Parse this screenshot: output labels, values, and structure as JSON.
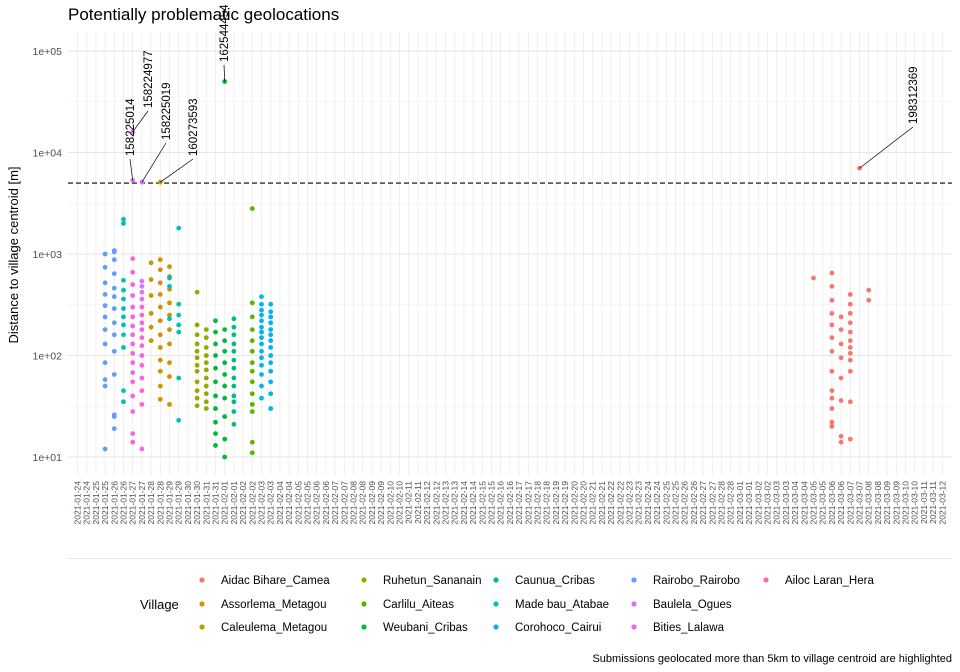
{
  "chart_data": {
    "type": "scatter",
    "title": "Potentially problematic geolocations",
    "ylabel": "Distance to village centroid [m]",
    "xlabel": "",
    "yscale": "log10",
    "ylim": [
      6,
      160000
    ],
    "y_ticks": [
      {
        "value": 10,
        "label": "1e+01"
      },
      {
        "value": 100,
        "label": "1e+02"
      },
      {
        "value": 1000,
        "label": "1e+03"
      },
      {
        "value": 10000,
        "label": "1e+04"
      },
      {
        "value": 100000,
        "label": "1e+05"
      }
    ],
    "threshold": 5000,
    "grid": true,
    "legend_position": "bottom",
    "legend_title": "Village",
    "caption": "Submissions geolocated more than 5km to village centroid are highlighted",
    "x_start_label": "2021-01-24",
    "x_count": 95,
    "x_labels": [
      "2021-01-24",
      "2021-01-24",
      "2021-01-25",
      "2021-01-25",
      "2021-01-26",
      "2021-01-26",
      "2021-01-27",
      "2021-01-27",
      "2021-01-28",
      "2021-01-28",
      "2021-01-29",
      "2021-01-29",
      "2021-01-30",
      "2021-01-30",
      "2021-01-31",
      "2021-01-31",
      "2021-02-01",
      "2021-02-01",
      "2021-02-02",
      "2021-02-02",
      "2021-02-03",
      "2021-02-03",
      "2021-02-04",
      "2021-02-04",
      "2021-02-05",
      "2021-02-05",
      "2021-02-06",
      "2021-02-06",
      "2021-02-07",
      "2021-02-07",
      "2021-02-08",
      "2021-02-08",
      "2021-02-09",
      "2021-02-09",
      "2021-02-10",
      "2021-02-10",
      "2021-02-11",
      "2021-02-11",
      "2021-02-12",
      "2021-02-12",
      "2021-02-13",
      "2021-02-13",
      "2021-02-14",
      "2021-02-14",
      "2021-02-15",
      "2021-02-15",
      "2021-02-16",
      "2021-02-16",
      "2021-02-17",
      "2021-02-17",
      "2021-02-18",
      "2021-02-18",
      "2021-02-19",
      "2021-02-19",
      "2021-02-20",
      "2021-02-20",
      "2021-02-21",
      "2021-02-21",
      "2021-02-22",
      "2021-02-22",
      "2021-02-23",
      "2021-02-23",
      "2021-02-24",
      "2021-02-24",
      "2021-02-25",
      "2021-02-25",
      "2021-02-26",
      "2021-02-26",
      "2021-02-27",
      "2021-02-27",
      "2021-02-28",
      "2021-02-28",
      "2021-03-01",
      "2021-03-01",
      "2021-03-02",
      "2021-03-02",
      "2021-03-03",
      "2021-03-03",
      "2021-03-04",
      "2021-03-04",
      "2021-03-05",
      "2021-03-05",
      "2021-03-06",
      "2021-03-06",
      "2021-03-07",
      "2021-03-07",
      "2021-03-08",
      "2021-03-08",
      "2021-03-09",
      "2021-03-09",
      "2021-03-10",
      "2021-03-10",
      "2021-03-11",
      "2021-03-11",
      "2021-03-12"
    ],
    "series": [
      {
        "name": "Aidac Bihare_Camea",
        "color": "#F8766D",
        "points": [
          [
            80,
            580
          ],
          [
            82,
            650
          ],
          [
            82,
            480
          ],
          [
            82,
            350
          ],
          [
            82,
            260
          ],
          [
            82,
            200
          ],
          [
            82,
            150
          ],
          [
            82,
            110
          ],
          [
            82,
            70
          ],
          [
            82,
            45
          ],
          [
            82,
            38
          ],
          [
            82,
            30
          ],
          [
            82,
            22
          ],
          [
            82,
            20
          ],
          [
            83,
            240
          ],
          [
            83,
            180
          ],
          [
            83,
            130
          ],
          [
            83,
            95
          ],
          [
            83,
            60
          ],
          [
            83,
            36
          ],
          [
            83,
            16
          ],
          [
            83,
            14
          ],
          [
            84,
            400
          ],
          [
            84,
            320
          ],
          [
            84,
            260
          ],
          [
            84,
            210
          ],
          [
            84,
            170
          ],
          [
            84,
            140
          ],
          [
            84,
            120
          ],
          [
            84,
            105
          ],
          [
            84,
            90
          ],
          [
            84,
            70
          ],
          [
            84,
            35
          ],
          [
            84,
            15
          ],
          [
            85,
            7000
          ],
          [
            86,
            440
          ],
          [
            86,
            350
          ]
        ]
      },
      {
        "name": "Assorlema_Metagou",
        "color": "#D39200",
        "points": [
          [
            9,
            5100
          ],
          [
            9,
            880
          ],
          [
            9,
            700
          ],
          [
            9,
            520
          ],
          [
            9,
            400
          ],
          [
            9,
            300
          ],
          [
            9,
            220
          ],
          [
            9,
            160
          ],
          [
            9,
            120
          ],
          [
            9,
            90
          ],
          [
            9,
            70
          ],
          [
            9,
            50
          ],
          [
            9,
            37
          ],
          [
            10,
            750
          ],
          [
            10,
            600
          ],
          [
            10,
            450
          ],
          [
            10,
            330
          ],
          [
            10,
            250
          ],
          [
            10,
            180
          ],
          [
            10,
            130
          ],
          [
            10,
            85
          ],
          [
            10,
            62
          ],
          [
            10,
            33
          ]
        ]
      },
      {
        "name": "Caleulema_Metagou",
        "color": "#B79F00",
        "points": [
          [
            8,
            820
          ],
          [
            8,
            560
          ],
          [
            8,
            390
          ],
          [
            8,
            260
          ],
          [
            8,
            190
          ],
          [
            8,
            140
          ]
        ]
      },
      {
        "name": "Ruhetun_Sananain",
        "color": "#93AA00",
        "points": [
          [
            13,
            420
          ],
          [
            13,
            200
          ],
          [
            13,
            160
          ],
          [
            13,
            130
          ],
          [
            13,
            110
          ],
          [
            13,
            95
          ],
          [
            13,
            80
          ],
          [
            13,
            70
          ],
          [
            13,
            55
          ],
          [
            13,
            45
          ],
          [
            13,
            38
          ],
          [
            13,
            32
          ],
          [
            14,
            180
          ],
          [
            14,
            150
          ],
          [
            14,
            120
          ],
          [
            14,
            100
          ],
          [
            14,
            85
          ],
          [
            14,
            72
          ],
          [
            14,
            60
          ],
          [
            14,
            50
          ],
          [
            14,
            42
          ],
          [
            14,
            35
          ],
          [
            14,
            30
          ]
        ]
      },
      {
        "name": "Carlilu_Aiteas",
        "color": "#5EB300",
        "points": [
          [
            19,
            2800
          ],
          [
            19,
            330
          ],
          [
            19,
            240
          ],
          [
            19,
            180
          ],
          [
            19,
            140
          ],
          [
            19,
            110
          ],
          [
            19,
            85
          ],
          [
            19,
            70
          ],
          [
            19,
            55
          ],
          [
            19,
            42
          ],
          [
            19,
            33
          ],
          [
            19,
            28
          ],
          [
            19,
            14
          ],
          [
            19,
            11
          ]
        ]
      },
      {
        "name": "Weubani_Cribas",
        "color": "#00BA38",
        "points": [
          [
            15,
            220
          ],
          [
            15,
            170
          ],
          [
            15,
            130
          ],
          [
            15,
            100
          ],
          [
            15,
            75
          ],
          [
            15,
            55
          ],
          [
            15,
            40
          ],
          [
            15,
            30
          ],
          [
            15,
            22
          ],
          [
            15,
            17
          ],
          [
            15,
            13
          ],
          [
            16,
            50000
          ],
          [
            16,
            180
          ],
          [
            16,
            140
          ],
          [
            16,
            110
          ],
          [
            16,
            85
          ],
          [
            16,
            65
          ],
          [
            16,
            50
          ],
          [
            16,
            38
          ],
          [
            16,
            25
          ],
          [
            16,
            15
          ],
          [
            16,
            10
          ]
        ]
      },
      {
        "name": "Caunua_Cribas",
        "color": "#00BF74",
        "points": [
          [
            17,
            230
          ],
          [
            17,
            190
          ],
          [
            17,
            160
          ],
          [
            17,
            130
          ],
          [
            17,
            110
          ],
          [
            17,
            90
          ],
          [
            17,
            75
          ],
          [
            17,
            60
          ],
          [
            17,
            50
          ],
          [
            17,
            40
          ],
          [
            17,
            35
          ],
          [
            17,
            28
          ],
          [
            17,
            21
          ]
        ]
      },
      {
        "name": "Made bau_Atabae",
        "color": "#00C0B8",
        "points": [
          [
            5,
            2200
          ],
          [
            5,
            2000
          ],
          [
            5,
            550
          ],
          [
            5,
            440
          ],
          [
            5,
            360
          ],
          [
            5,
            290
          ],
          [
            5,
            240
          ],
          [
            5,
            200
          ],
          [
            5,
            160
          ],
          [
            5,
            120
          ],
          [
            5,
            45
          ],
          [
            5,
            35
          ],
          [
            10,
            580
          ],
          [
            10,
            480
          ],
          [
            10,
            230
          ],
          [
            11,
            1800
          ],
          [
            11,
            320
          ],
          [
            11,
            250
          ],
          [
            11,
            200
          ],
          [
            11,
            170
          ],
          [
            11,
            60
          ],
          [
            11,
            23
          ]
        ]
      },
      {
        "name": "Corohoco_Cairui",
        "color": "#00B4F0",
        "points": [
          [
            20,
            380
          ],
          [
            20,
            320
          ],
          [
            20,
            280
          ],
          [
            20,
            250
          ],
          [
            20,
            220
          ],
          [
            20,
            190
          ],
          [
            20,
            170
          ],
          [
            20,
            150
          ],
          [
            20,
            130
          ],
          [
            20,
            110
          ],
          [
            20,
            95
          ],
          [
            20,
            80
          ],
          [
            20,
            65
          ],
          [
            20,
            50
          ],
          [
            20,
            38
          ],
          [
            21,
            320
          ],
          [
            21,
            270
          ],
          [
            21,
            240
          ],
          [
            21,
            210
          ],
          [
            21,
            180
          ],
          [
            21,
            160
          ],
          [
            21,
            140
          ],
          [
            21,
            120
          ],
          [
            21,
            100
          ],
          [
            21,
            85
          ],
          [
            21,
            70
          ],
          [
            21,
            55
          ],
          [
            21,
            42
          ],
          [
            21,
            30
          ]
        ]
      },
      {
        "name": "Rairobo_Rairobo",
        "color": "#619CFF",
        "points": [
          [
            3,
            1000
          ],
          [
            3,
            740
          ],
          [
            3,
            520
          ],
          [
            3,
            400
          ],
          [
            3,
            310
          ],
          [
            3,
            240
          ],
          [
            3,
            180
          ],
          [
            3,
            130
          ],
          [
            3,
            85
          ],
          [
            3,
            58
          ],
          [
            3,
            50
          ],
          [
            3,
            12
          ],
          [
            4,
            1080
          ],
          [
            4,
            1050
          ],
          [
            4,
            880
          ],
          [
            4,
            640
          ],
          [
            4,
            460
          ],
          [
            4,
            380
          ],
          [
            4,
            290
          ],
          [
            4,
            210
          ],
          [
            4,
            160
          ],
          [
            4,
            110
          ],
          [
            4,
            65
          ],
          [
            4,
            26
          ],
          [
            4,
            25
          ],
          [
            4,
            19
          ]
        ]
      },
      {
        "name": "Baulela_Ogues",
        "color": "#DB72FB",
        "points": [
          [
            6,
            5300
          ],
          [
            7,
            5100
          ],
          [
            7,
            540
          ],
          [
            7,
            480
          ],
          [
            7,
            420
          ],
          [
            7,
            360
          ]
        ]
      },
      {
        "name": "Bities_Lalawa",
        "color": "#F564E3",
        "points": [
          [
            6,
            16000
          ],
          [
            6,
            900
          ],
          [
            6,
            660
          ],
          [
            6,
            500
          ],
          [
            6,
            390
          ],
          [
            6,
            300
          ],
          [
            6,
            240
          ],
          [
            6,
            195
          ],
          [
            6,
            160
          ],
          [
            6,
            130
          ],
          [
            6,
            105
          ],
          [
            6,
            85
          ],
          [
            6,
            68
          ],
          [
            6,
            55
          ],
          [
            6,
            40
          ],
          [
            6,
            28
          ],
          [
            6,
            17
          ],
          [
            6,
            14
          ],
          [
            7,
            300
          ],
          [
            7,
            250
          ],
          [
            7,
            210
          ],
          [
            7,
            180
          ],
          [
            7,
            150
          ],
          [
            7,
            125
          ],
          [
            7,
            100
          ],
          [
            7,
            80
          ],
          [
            7,
            60
          ],
          [
            7,
            45
          ],
          [
            7,
            33
          ],
          [
            7,
            12
          ]
        ]
      },
      {
        "name": "Ailoc Laran_Hera",
        "color": "#FF64B0",
        "points": []
      }
    ],
    "annotations": [
      {
        "label": "158225014",
        "x": 6,
        "y": 5300
      },
      {
        "label": "158224977",
        "x": 6,
        "y": 16000
      },
      {
        "label": "158225019",
        "x": 7,
        "y": 5100
      },
      {
        "label": "160273593",
        "x": 9,
        "y": 5100
      },
      {
        "label": "162544454",
        "x": 16,
        "y": 50000
      },
      {
        "label": "198312369",
        "x": 85,
        "y": 7000
      }
    ]
  }
}
